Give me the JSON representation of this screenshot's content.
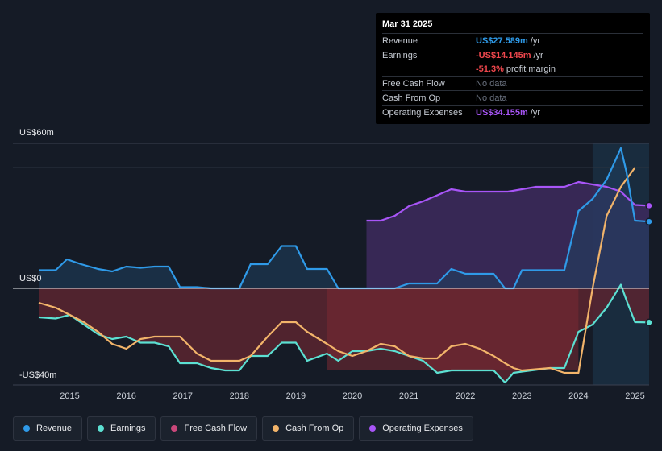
{
  "tooltip": {
    "date": "Mar 31 2025",
    "rows": [
      {
        "label": "Revenue",
        "value": "US$27.589m",
        "unit": "/yr",
        "color": "#2f9ae8"
      },
      {
        "label": "Earnings",
        "value": "-US$14.145m",
        "unit": "/yr",
        "color": "#f0474d"
      },
      {
        "label": "",
        "value": "-51.3%",
        "unit": "profit margin",
        "color": "#f0474d"
      },
      {
        "label": "Free Cash Flow",
        "value": "No data",
        "unit": "",
        "color": "#6b7280"
      },
      {
        "label": "Cash From Op",
        "value": "No data",
        "unit": "",
        "color": "#6b7280"
      },
      {
        "label": "Operating Expenses",
        "value": "US$34.155m",
        "unit": "/yr",
        "color": "#a855f7"
      }
    ]
  },
  "axis": {
    "top_label": "US$60m",
    "zero_label": "US$0",
    "bottom_label": "-US$40m"
  },
  "legend": [
    {
      "label": "Revenue",
      "color": "#2f9ae8"
    },
    {
      "label": "Earnings",
      "color": "#5ce0d2"
    },
    {
      "label": "Free Cash Flow",
      "color": "#c9477a"
    },
    {
      "label": "Cash From Op",
      "color": "#f2b46a"
    },
    {
      "label": "Operating Expenses",
      "color": "#a855f7"
    }
  ],
  "chart_data": {
    "type": "line",
    "title": "",
    "xlabel": "",
    "ylabel": "",
    "units": "US$m",
    "xlim": [
      2014.45,
      2025.25
    ],
    "ylim": [
      -40,
      60
    ],
    "x_ticks": [
      2015,
      2016,
      2017,
      2018,
      2019,
      2020,
      2021,
      2022,
      2023,
      2024,
      2025
    ],
    "x_tick_labels": [
      "2015",
      "2016",
      "2017",
      "2018",
      "2019",
      "2020",
      "2021",
      "2022",
      "2023",
      "2024",
      "2025"
    ],
    "highlight_range": [
      2024.25,
      2025.25
    ],
    "series": [
      {
        "name": "Revenue",
        "color": "#2f9ae8",
        "x": [
          2014.45,
          2014.75,
          2014.95,
          2015.2,
          2015.5,
          2015.75,
          2016.0,
          2016.25,
          2016.5,
          2016.75,
          2016.95,
          2017.25,
          2017.5,
          2017.75,
          2018.0,
          2018.2,
          2018.5,
          2018.75,
          2019.0,
          2019.2,
          2019.55,
          2019.75,
          2020.0,
          2020.5,
          2020.75,
          2021.0,
          2021.25,
          2021.5,
          2021.75,
          2022.0,
          2022.25,
          2022.5,
          2022.7,
          2022.85,
          2023.0,
          2023.5,
          2023.75,
          2024.0,
          2024.25,
          2024.5,
          2024.75,
          2024.85,
          2025.0,
          2025.25
        ],
        "y": [
          7.5,
          7.5,
          12,
          10,
          8,
          7,
          9,
          8.5,
          9,
          9,
          0.5,
          0.5,
          0,
          0,
          0,
          10,
          10,
          17.5,
          17.5,
          8,
          8,
          0,
          0,
          0,
          0,
          2,
          2,
          2,
          8,
          6,
          6,
          6,
          0,
          0,
          7.5,
          7.5,
          7.5,
          32,
          37,
          45,
          58,
          48,
          28,
          27.6
        ]
      },
      {
        "name": "Earnings",
        "color": "#5ce0d2",
        "x": [
          2014.45,
          2014.75,
          2015.0,
          2015.25,
          2015.5,
          2015.75,
          2016.0,
          2016.25,
          2016.5,
          2016.75,
          2016.95,
          2017.25,
          2017.5,
          2017.75,
          2018.0,
          2018.2,
          2018.5,
          2018.75,
          2019.0,
          2019.2,
          2019.55,
          2019.75,
          2020.0,
          2020.25,
          2020.5,
          2020.75,
          2021.0,
          2021.25,
          2021.5,
          2021.75,
          2022.0,
          2022.25,
          2022.5,
          2022.7,
          2022.85,
          2023.0,
          2023.5,
          2023.75,
          2024.0,
          2024.25,
          2024.5,
          2024.75,
          2024.85,
          2025.0,
          2025.25
        ],
        "y": [
          -12,
          -12.5,
          -11,
          -15,
          -19,
          -21,
          -20,
          -22.5,
          -22.5,
          -24,
          -31,
          -31,
          -33,
          -34,
          -34,
          -28,
          -28,
          -22.5,
          -22.5,
          -30,
          -27,
          -30,
          -26,
          -26,
          -25,
          -26,
          -28,
          -30,
          -35,
          -34,
          -34,
          -34,
          -34,
          -39,
          -35,
          -34.5,
          -33,
          -33,
          -18,
          -15,
          -8,
          1.5,
          -5,
          -14,
          -14.1
        ]
      },
      {
        "name": "Cash From Op",
        "color": "#f2b46a",
        "x": [
          2014.45,
          2014.75,
          2015.0,
          2015.25,
          2015.5,
          2015.75,
          2016.0,
          2016.25,
          2016.5,
          2016.75,
          2016.95,
          2017.25,
          2017.5,
          2017.75,
          2018.0,
          2018.2,
          2018.5,
          2018.75,
          2019.0,
          2019.2,
          2019.55,
          2019.75,
          2020.0,
          2020.25,
          2020.5,
          2020.75,
          2021.0,
          2021.25,
          2021.5,
          2021.75,
          2022.0,
          2022.25,
          2022.5,
          2022.7,
          2022.85,
          2023.0,
          2023.5,
          2023.75,
          2024.0,
          2024.25,
          2024.5,
          2024.75,
          2025.0
        ],
        "y": [
          -6,
          -8,
          -11,
          -14,
          -18,
          -23,
          -25,
          -21,
          -20,
          -20,
          -20,
          -27,
          -30,
          -30,
          -30,
          -28,
          -20,
          -14,
          -14,
          -18,
          -23,
          -26,
          -28,
          -26,
          -23,
          -24,
          -28,
          -29,
          -29,
          -24,
          -23,
          -25,
          -28,
          -31,
          -33,
          -34,
          -33,
          -35,
          -35,
          0,
          30,
          42,
          50
        ]
      },
      {
        "name": "Operating Expenses",
        "color": "#a855f7",
        "x": [
          2020.25,
          2020.5,
          2020.75,
          2021.0,
          2021.25,
          2021.5,
          2021.75,
          2022.0,
          2022.25,
          2022.5,
          2022.75,
          2023.0,
          2023.25,
          2023.5,
          2023.75,
          2024.0,
          2024.25,
          2024.5,
          2024.75,
          2025.0,
          2025.25
        ],
        "y": [
          28,
          28,
          30,
          34,
          36,
          38.5,
          41,
          40,
          40,
          40,
          40,
          41,
          42,
          42,
          42,
          44,
          43,
          42,
          40,
          34.5,
          34.2
        ]
      },
      {
        "name": "Free Cash Flow",
        "color": "#c9477a",
        "x": [],
        "y": []
      }
    ]
  }
}
